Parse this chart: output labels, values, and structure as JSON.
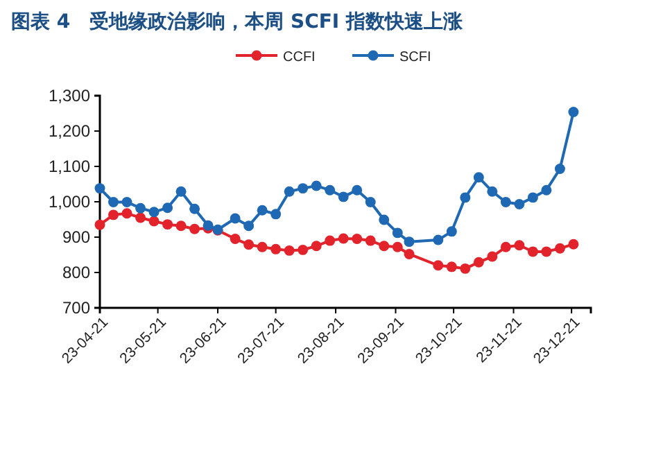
{
  "chart_data": {
    "type": "line",
    "title": "图表 4　受地缘政治影响，本周 SCFI 指数快速上涨",
    "x": [
      "--04-21",
      "--04-28",
      "--05-05",
      "--05-12",
      "--05-19",
      "--05-26",
      "--06-02",
      "--06-09",
      "--06-16",
      "--06-21",
      "--06-30",
      "--07-07",
      "--07-14",
      "--07-21",
      "--07-28",
      "--08-04",
      "--08-11",
      "--08-18",
      "--08-25",
      "--09-01",
      "--09-08",
      "--09-15",
      "--09-22",
      "--09-28",
      "--10-13",
      "--10-20",
      "--10-27",
      "--11-03",
      "--11-10",
      "--11-17",
      "--11-24",
      "--12-01",
      "--12-08",
      "--12-15",
      "--12-22"
    ],
    "series": [
      {
        "name": "CCFI",
        "color": "#e3232c",
        "values": [
          935,
          963,
          967,
          955,
          945,
          936,
          932,
          923,
          925,
          919,
          895,
          879,
          872,
          866,
          862,
          864,
          875,
          890,
          896,
          895,
          890,
          875,
          872,
          852,
          820,
          816,
          811,
          829,
          845,
          872,
          877,
          859,
          859,
          868,
          880
        ]
      },
      {
        "name": "SCFI",
        "color": "#1f69b4",
        "values": [
          1038,
          999,
          999,
          982,
          971,
          983,
          1029,
          980,
          933,
          921,
          953,
          932,
          976,
          965,
          1029,
          1038,
          1045,
          1033,
          1014,
          1033,
          999,
          949,
          912,
          887,
          892,
          916,
          1012,
          1069,
          1029,
          999,
          993,
          1012,
          1033,
          1093,
          1254
        ]
      }
    ],
    "xlim": [
      "--04-21",
      "--12-31"
    ],
    "xticks": [
      {
        "value": "--04-21",
        "label": "23-04-21"
      },
      {
        "value": "--05-21",
        "label": "23-05-21"
      },
      {
        "value": "--06-21",
        "label": "23-06-21"
      },
      {
        "value": "--07-21",
        "label": "23-07-21"
      },
      {
        "value": "--08-21",
        "label": "23-08-21"
      },
      {
        "value": "--09-21",
        "label": "23-09-21"
      },
      {
        "value": "--10-21",
        "label": "23-10-21"
      },
      {
        "value": "--11-21",
        "label": "23-11-21"
      },
      {
        "value": "--12-21",
        "label": "23-12-21"
      }
    ],
    "ylim": [
      700,
      1300
    ],
    "yticks": [
      700,
      800,
      900,
      {
        "value": 1000,
        "label": "1,000"
      },
      {
        "value": 1100,
        "label": "1,100"
      },
      {
        "value": 1200,
        "label": "1,200"
      },
      {
        "value": 1300,
        "label": "1,300"
      }
    ],
    "marker": "circle",
    "line_style": "solid",
    "legend": "top",
    "grid": false
  }
}
